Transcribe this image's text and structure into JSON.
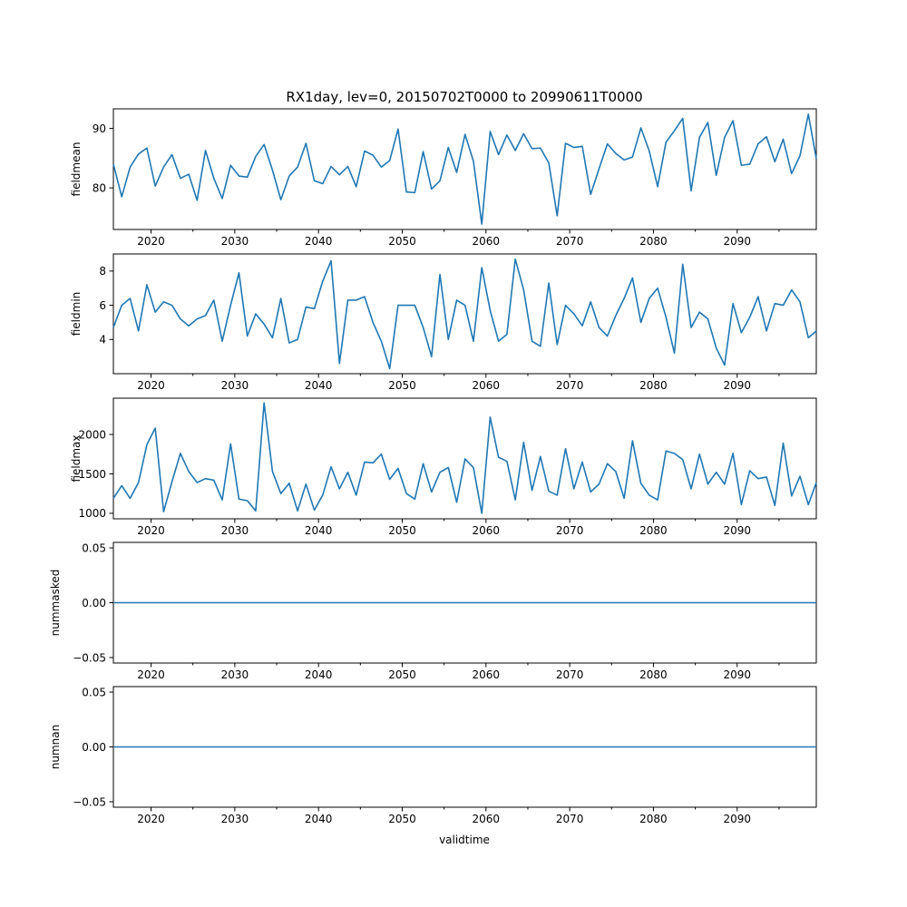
{
  "chart_data": {
    "type": "line",
    "title": "RX1day, lev=0, 20150702T0000 to 20990611T0000",
    "xlabel": "validtime",
    "xlim": [
      2015.5,
      2099.45
    ],
    "x_major_ticks": [
      2020,
      2030,
      2040,
      2050,
      2060,
      2070,
      2080,
      2090
    ],
    "x_minor_ticks": [
      2025,
      2035,
      2045,
      2055,
      2065,
      2075,
      2085,
      2095
    ],
    "x_tick_labels": [
      "2020",
      "2030",
      "2040",
      "2050",
      "2060",
      "2070",
      "2080",
      "2090"
    ],
    "line_color": "#1f77b4",
    "x": [
      2015.5,
      2016.5,
      2017.5,
      2018.5,
      2019.5,
      2020.5,
      2021.5,
      2022.5,
      2023.5,
      2024.5,
      2025.5,
      2026.5,
      2027.5,
      2028.5,
      2029.5,
      2030.5,
      2031.5,
      2032.5,
      2033.5,
      2034.5,
      2035.5,
      2036.5,
      2037.5,
      2038.5,
      2039.5,
      2040.5,
      2041.5,
      2042.5,
      2043.5,
      2044.5,
      2045.5,
      2046.5,
      2047.5,
      2048.5,
      2049.5,
      2050.5,
      2051.5,
      2052.5,
      2053.5,
      2054.5,
      2055.5,
      2056.5,
      2057.5,
      2058.5,
      2059.5,
      2060.5,
      2061.5,
      2062.5,
      2063.5,
      2064.5,
      2065.5,
      2066.5,
      2067.5,
      2068.5,
      2069.5,
      2070.5,
      2071.5,
      2072.5,
      2073.5,
      2074.5,
      2075.5,
      2076.5,
      2077.5,
      2078.5,
      2079.5,
      2080.5,
      2081.5,
      2082.5,
      2083.5,
      2084.5,
      2085.5,
      2086.5,
      2087.5,
      2088.5,
      2089.5,
      2090.5,
      2091.5,
      2092.5,
      2093.5,
      2094.5,
      2095.5,
      2096.5,
      2097.5,
      2098.5,
      2099.45
    ],
    "panels": [
      {
        "name": "fieldmean",
        "ylabel": "fieldmean",
        "ylim": [
          73.0,
          93.3
        ],
        "yticks": [
          80,
          90
        ],
        "ytick_labels": [
          "80",
          "90"
        ],
        "values": [
          84.0,
          78.5,
          83.5,
          85.7,
          86.7,
          80.3,
          83.5,
          85.6,
          81.6,
          82.3,
          77.9,
          86.3,
          81.6,
          78.2,
          83.8,
          82.0,
          81.8,
          85.3,
          87.3,
          83.0,
          78.0,
          82.0,
          83.5,
          87.5,
          81.2,
          80.7,
          83.6,
          82.2,
          83.6,
          80.2,
          86.2,
          85.5,
          83.5,
          84.6,
          89.9,
          79.3,
          79.2,
          86.1,
          79.8,
          81.2,
          86.8,
          82.6,
          89.0,
          84.5,
          73.9,
          89.5,
          85.6,
          88.9,
          86.3,
          89.1,
          86.6,
          86.7,
          84.2,
          75.3,
          87.5,
          86.8,
          87.0,
          78.9,
          83.2,
          87.4,
          85.8,
          84.7,
          85.2,
          90.1,
          86.2,
          80.2,
          87.7,
          89.6,
          91.7,
          79.5,
          88.5,
          91.0,
          82.1,
          88.5,
          91.3,
          83.8,
          84.0,
          87.4,
          88.6,
          84.4,
          88.2,
          82.4,
          85.4,
          92.4,
          84.9
        ]
      },
      {
        "name": "fieldmin",
        "ylabel": "fieldmin",
        "ylim": [
          2.0,
          9.0
        ],
        "yticks": [
          4,
          6,
          8
        ],
        "ytick_labels": [
          "4",
          "6",
          "8"
        ],
        "values": [
          4.7,
          6.0,
          6.4,
          4.5,
          7.2,
          5.6,
          6.2,
          6.0,
          5.2,
          4.8,
          5.2,
          5.4,
          6.3,
          3.9,
          6.0,
          7.9,
          4.2,
          5.5,
          4.9,
          4.1,
          6.4,
          3.8,
          4.0,
          5.9,
          5.8,
          7.4,
          8.6,
          2.6,
          6.3,
          6.3,
          6.5,
          5.0,
          3.9,
          2.3,
          6.0,
          6.0,
          6.0,
          4.7,
          3.0,
          7.8,
          4.0,
          6.3,
          6.0,
          3.9,
          8.2,
          5.7,
          3.9,
          4.3,
          8.7,
          6.9,
          3.9,
          3.6,
          7.3,
          3.7,
          6.0,
          5.5,
          4.8,
          6.2,
          4.7,
          4.2,
          5.4,
          6.4,
          7.6,
          5.0,
          6.4,
          7.0,
          5.3,
          3.2,
          8.4,
          4.7,
          5.6,
          5.2,
          3.5,
          2.5,
          6.1,
          4.4,
          5.3,
          6.5,
          4.5,
          6.1,
          6.0,
          6.9,
          6.2,
          4.1,
          4.5
        ]
      },
      {
        "name": "fieldmax",
        "ylabel": "fieldmax",
        "ylim": [
          930,
          2460
        ],
        "yticks": [
          1000,
          1500,
          2000
        ],
        "ytick_labels": [
          "1000",
          "1500",
          "2000"
        ],
        "values": [
          1190,
          1350,
          1190,
          1390,
          1870,
          2080,
          1020,
          1400,
          1760,
          1530,
          1390,
          1440,
          1420,
          1170,
          1880,
          1180,
          1160,
          1030,
          2400,
          1530,
          1250,
          1380,
          1030,
          1370,
          1040,
          1230,
          1590,
          1310,
          1520,
          1230,
          1650,
          1640,
          1750,
          1430,
          1570,
          1250,
          1180,
          1630,
          1270,
          1520,
          1580,
          1140,
          1690,
          1580,
          1000,
          2220,
          1710,
          1660,
          1170,
          1900,
          1290,
          1720,
          1280,
          1230,
          1820,
          1310,
          1650,
          1270,
          1370,
          1630,
          1530,
          1190,
          1920,
          1380,
          1230,
          1170,
          1790,
          1760,
          1680,
          1310,
          1750,
          1370,
          1520,
          1370,
          1760,
          1110,
          1540,
          1440,
          1460,
          1100,
          1890,
          1220,
          1470,
          1110,
          1390
        ]
      },
      {
        "name": "nummasked",
        "ylabel": "nummasked",
        "ylim": [
          -0.055,
          0.055
        ],
        "yticks": [
          -0.05,
          0.0,
          0.05
        ],
        "ytick_labels": [
          "−0.05",
          "0.00",
          "0.05"
        ],
        "constant": 0.0
      },
      {
        "name": "numnan",
        "ylabel": "numnan",
        "ylim": [
          -0.055,
          0.055
        ],
        "yticks": [
          -0.05,
          0.0,
          0.05
        ],
        "ytick_labels": [
          "−0.05",
          "0.00",
          "0.05"
        ],
        "constant": 0.0
      }
    ]
  }
}
